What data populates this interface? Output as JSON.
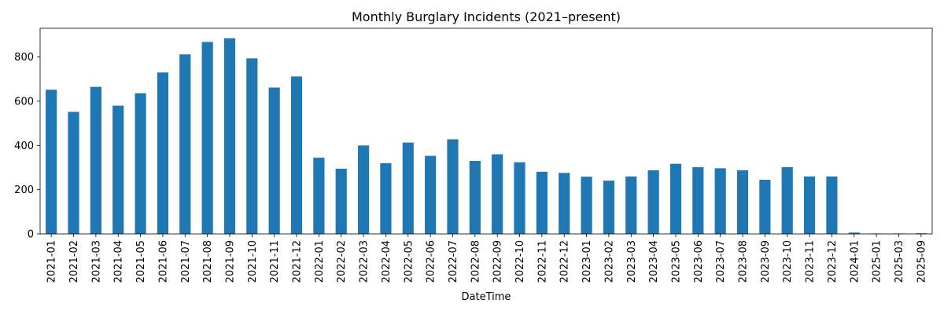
{
  "chart_data": {
    "type": "bar",
    "title": "Monthly Burglary Incidents (2021–present)",
    "xlabel": "DateTime",
    "ylabel": "",
    "ylim": [
      0,
      930
    ],
    "yticks": [
      0,
      200,
      400,
      600,
      800
    ],
    "grid": false,
    "legend": "none",
    "bar_color": "#1f77b4",
    "categories": [
      "2021-01",
      "2021-02",
      "2021-03",
      "2021-04",
      "2021-05",
      "2021-06",
      "2021-07",
      "2021-08",
      "2021-09",
      "2021-10",
      "2021-11",
      "2021-12",
      "2022-01",
      "2022-02",
      "2022-03",
      "2022-04",
      "2022-05",
      "2022-06",
      "2022-07",
      "2022-08",
      "2022-09",
      "2022-10",
      "2022-11",
      "2022-12",
      "2023-01",
      "2023-02",
      "2023-03",
      "2023-04",
      "2023-05",
      "2023-06",
      "2023-07",
      "2023-08",
      "2023-09",
      "2023-10",
      "2023-11",
      "2023-12",
      "2024-01",
      "2025-01",
      "2025-03",
      "2025-09"
    ],
    "values": [
      652,
      552,
      665,
      580,
      636,
      730,
      812,
      868,
      885,
      794,
      662,
      712,
      345,
      295,
      400,
      320,
      413,
      353,
      428,
      330,
      360,
      324,
      281,
      276,
      259,
      241,
      260,
      288,
      317,
      302,
      297,
      288,
      245,
      302,
      260,
      260,
      6,
      2,
      2,
      3
    ]
  }
}
